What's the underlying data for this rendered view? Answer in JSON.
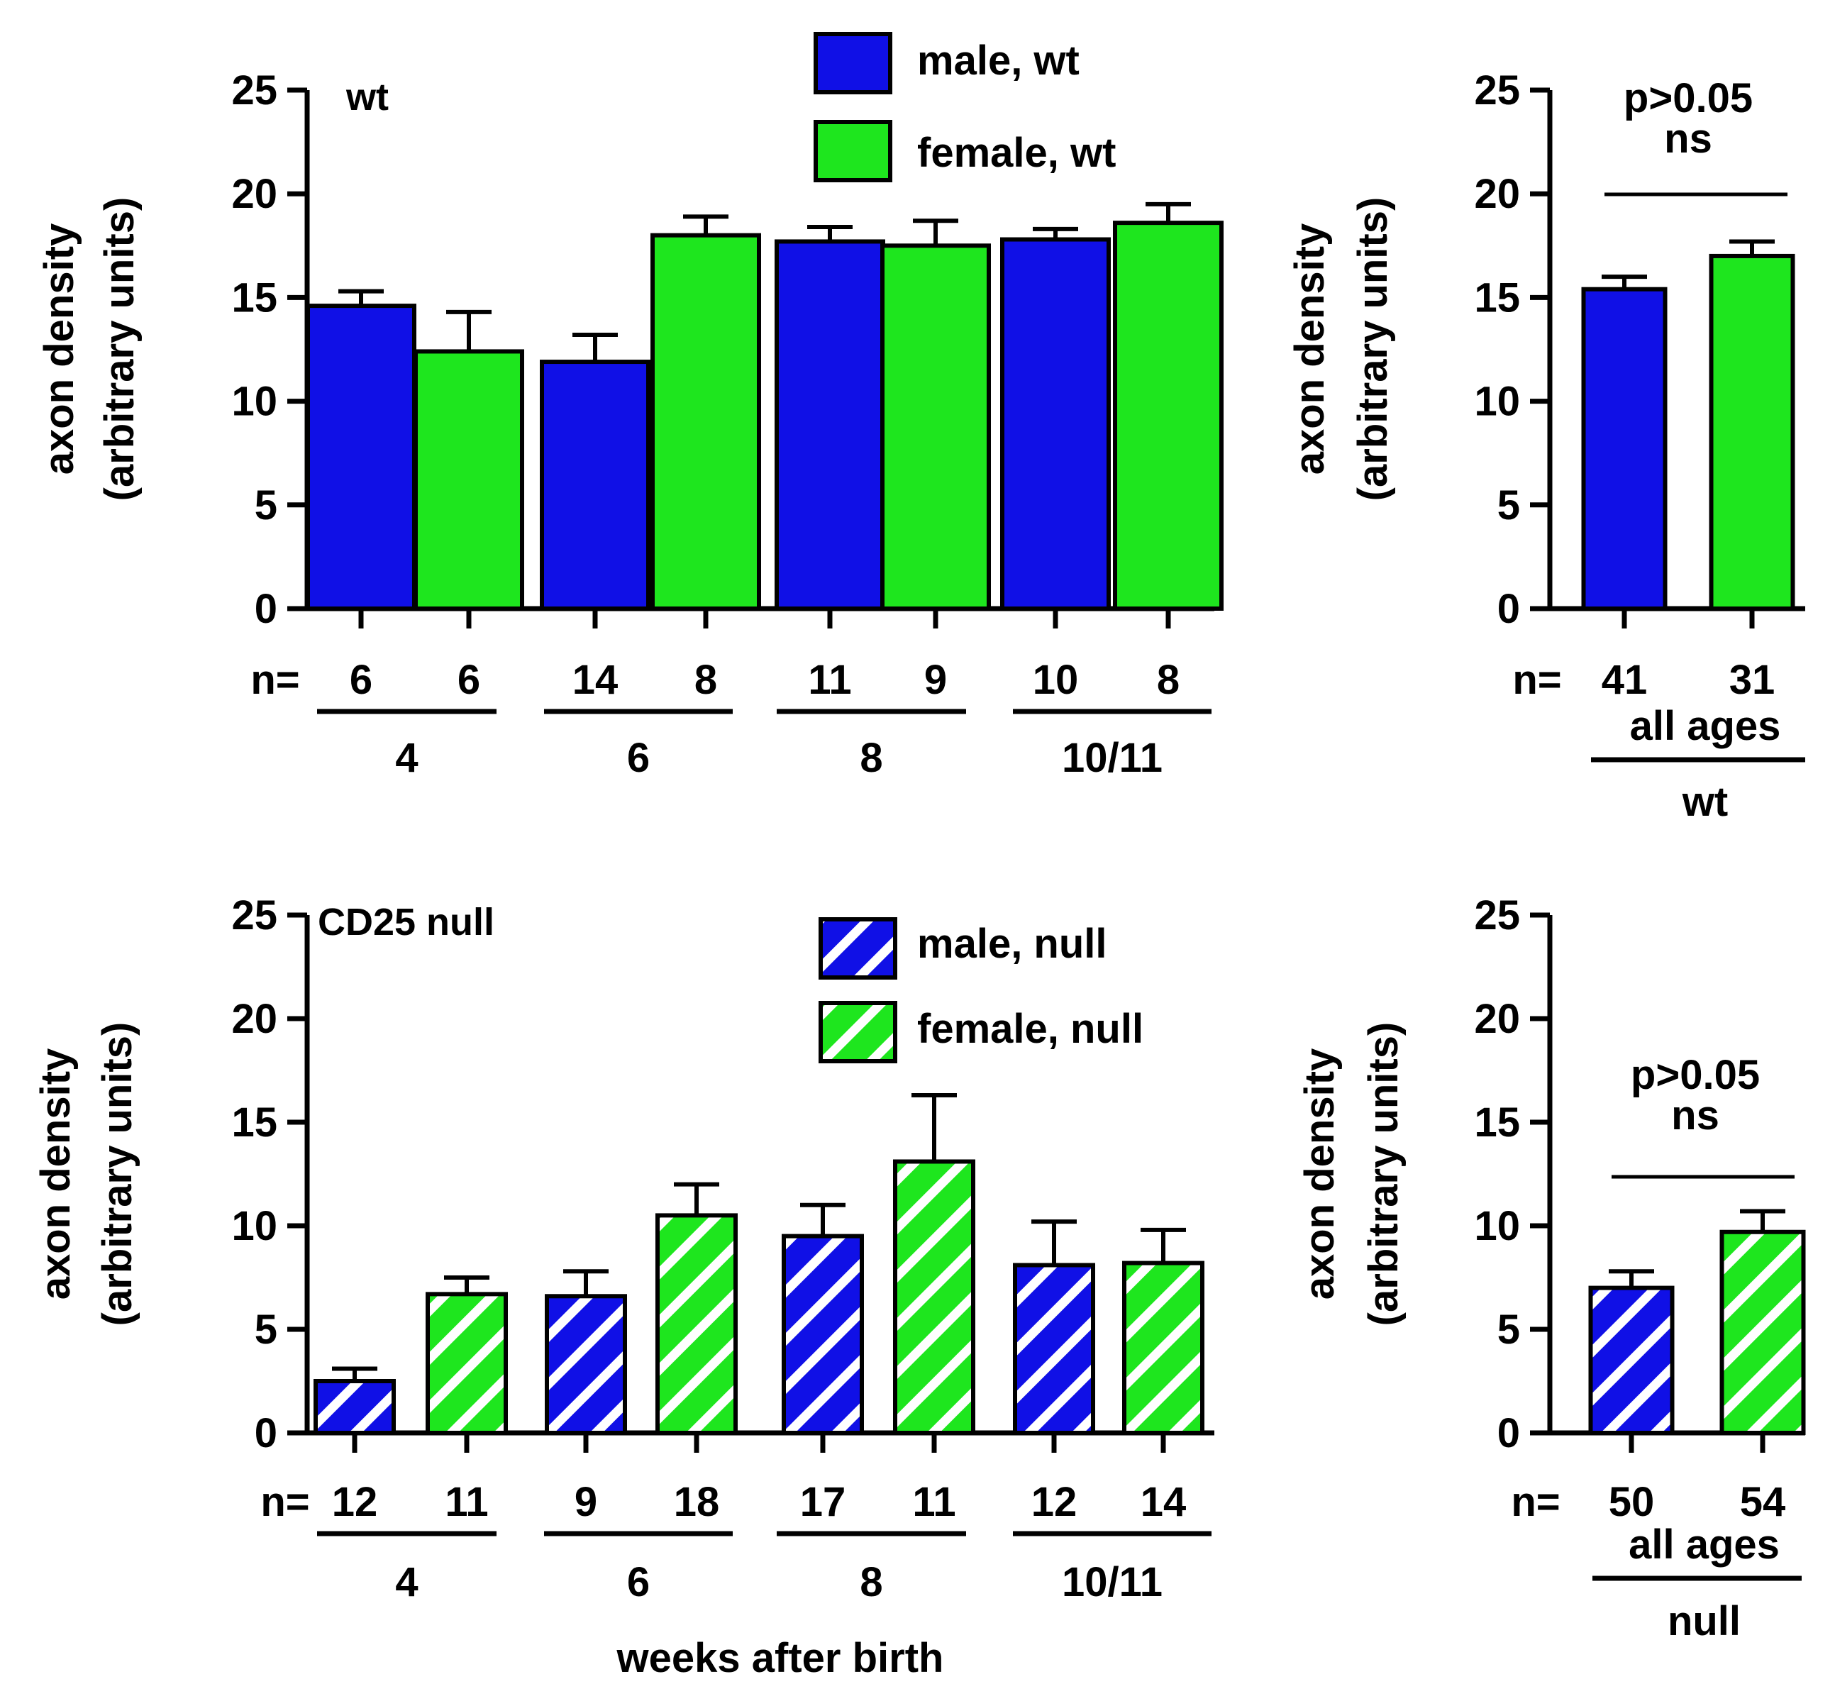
{
  "colors": {
    "male": "#1010e6",
    "female": "#1ee61e",
    "stroke": "#000000",
    "stripe": "#ffffff"
  },
  "chart_data": [
    {
      "id": "wt-by-age",
      "type": "bar",
      "panel_label": "wt",
      "ylabel": [
        "axon density",
        "(arbitrary units)"
      ],
      "ylim": [
        0,
        25
      ],
      "yticks": [
        0,
        5,
        10,
        15,
        20,
        25
      ],
      "hatched": false,
      "legend": [
        "male, wt",
        "female, wt"
      ],
      "n_prefix": "n=",
      "groups": [
        {
          "label": "4",
          "bars": [
            {
              "sex": "male",
              "value": 14.6,
              "error": 0.7,
              "n": "6"
            },
            {
              "sex": "female",
              "value": 12.4,
              "error": 1.9,
              "n": "6"
            }
          ]
        },
        {
          "label": "6",
          "bars": [
            {
              "sex": "male",
              "value": 11.9,
              "error": 1.3,
              "n": "14"
            },
            {
              "sex": "female",
              "value": 18.0,
              "error": 0.9,
              "n": "8"
            }
          ]
        },
        {
          "label": "8",
          "bars": [
            {
              "sex": "male",
              "value": 17.7,
              "error": 0.7,
              "n": "11"
            },
            {
              "sex": "female",
              "value": 17.5,
              "error": 1.2,
              "n": "9"
            }
          ]
        },
        {
          "label": "10/11",
          "bars": [
            {
              "sex": "male",
              "value": 17.8,
              "error": 0.5,
              "n": "10"
            },
            {
              "sex": "female",
              "value": 18.6,
              "error": 0.9,
              "n": "8"
            }
          ]
        }
      ]
    },
    {
      "id": "wt-all-ages",
      "type": "bar",
      "ylabel": [
        "axon density",
        "(arbitrary units)"
      ],
      "ylim": [
        0,
        25
      ],
      "yticks": [
        0,
        5,
        10,
        15,
        20,
        25
      ],
      "hatched": false,
      "n_prefix": "n=",
      "stat": [
        "p>0.05",
        "ns"
      ],
      "sublabel": "all ages",
      "group_label": "wt",
      "bars": [
        {
          "sex": "male",
          "value": 15.4,
          "error": 0.6,
          "n": "41"
        },
        {
          "sex": "female",
          "value": 17.0,
          "error": 0.7,
          "n": "31"
        }
      ]
    },
    {
      "id": "null-by-age",
      "type": "bar",
      "panel_label": "CD25 null",
      "ylabel": [
        "axon density",
        "(arbitrary units)"
      ],
      "ylim": [
        0,
        25
      ],
      "yticks": [
        0,
        5,
        10,
        15,
        20,
        25
      ],
      "hatched": true,
      "legend": [
        "male, null",
        "female, null"
      ],
      "n_prefix": "n=",
      "xlabel": "weeks after birth",
      "groups": [
        {
          "label": "4",
          "bars": [
            {
              "sex": "male",
              "value": 2.5,
              "error": 0.6,
              "n": "12"
            },
            {
              "sex": "female",
              "value": 6.7,
              "error": 0.8,
              "n": "11"
            }
          ]
        },
        {
          "label": "6",
          "bars": [
            {
              "sex": "male",
              "value": 6.6,
              "error": 1.2,
              "n": "9"
            },
            {
              "sex": "female",
              "value": 10.5,
              "error": 1.5,
              "n": "18"
            }
          ]
        },
        {
          "label": "8",
          "bars": [
            {
              "sex": "male",
              "value": 9.5,
              "error": 1.5,
              "n": "17"
            },
            {
              "sex": "female",
              "value": 13.1,
              "error": 3.2,
              "n": "11"
            }
          ]
        },
        {
          "label": "10/11",
          "bars": [
            {
              "sex": "male",
              "value": 8.1,
              "error": 2.1,
              "n": "12"
            },
            {
              "sex": "female",
              "value": 8.2,
              "error": 1.6,
              "n": "14"
            }
          ]
        }
      ]
    },
    {
      "id": "null-all-ages",
      "type": "bar",
      "ylabel": [
        "axon density",
        "(arbitrary units)"
      ],
      "ylim": [
        0,
        25
      ],
      "yticks": [
        0,
        5,
        10,
        15,
        20,
        25
      ],
      "hatched": true,
      "n_prefix": "n=",
      "stat": [
        "p>0.05",
        "ns"
      ],
      "sublabel": "all ages",
      "group_label": "null",
      "bars": [
        {
          "sex": "male",
          "value": 7.0,
          "error": 0.8,
          "n": "50"
        },
        {
          "sex": "female",
          "value": 9.7,
          "error": 1.0,
          "n": "54"
        }
      ]
    }
  ]
}
